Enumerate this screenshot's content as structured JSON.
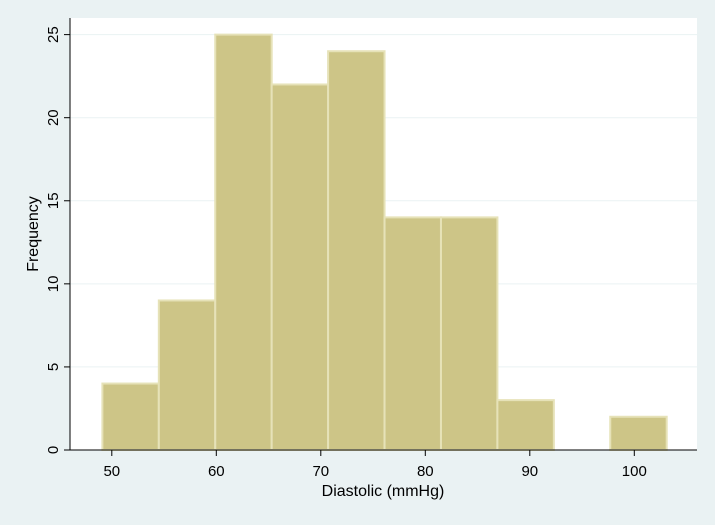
{
  "chart_data": {
    "type": "bar",
    "histogram": true,
    "title": "",
    "xlabel": "Diastolic (mmHg)",
    "ylabel": "Frequency",
    "xlim": [
      46,
      106
    ],
    "ylim": [
      0,
      26
    ],
    "xticks": [
      50,
      60,
      70,
      80,
      90,
      100
    ],
    "yticks": [
      0,
      5,
      10,
      15,
      20,
      25
    ],
    "grid": "horizontal",
    "legend": "none",
    "bar_color": "#cdc587",
    "bar_edge_color": "#e6e2b8",
    "background_color": "#eaf2f3",
    "plot_background_color": "#ffffff",
    "bins": [
      {
        "x0": 49.1,
        "x1": 54.5,
        "value": 4
      },
      {
        "x0": 54.5,
        "x1": 59.9,
        "value": 9
      },
      {
        "x0": 59.9,
        "x1": 65.3,
        "value": 25
      },
      {
        "x0": 65.3,
        "x1": 70.7,
        "value": 22
      },
      {
        "x0": 70.7,
        "x1": 76.1,
        "value": 24
      },
      {
        "x0": 76.1,
        "x1": 81.5,
        "value": 14
      },
      {
        "x0": 81.5,
        "x1": 86.9,
        "value": 14
      },
      {
        "x0": 86.9,
        "x1": 92.3,
        "value": 3
      },
      {
        "x0": 92.3,
        "x1": 97.7,
        "value": 0
      },
      {
        "x0": 97.7,
        "x1": 103.1,
        "value": 2
      }
    ]
  }
}
